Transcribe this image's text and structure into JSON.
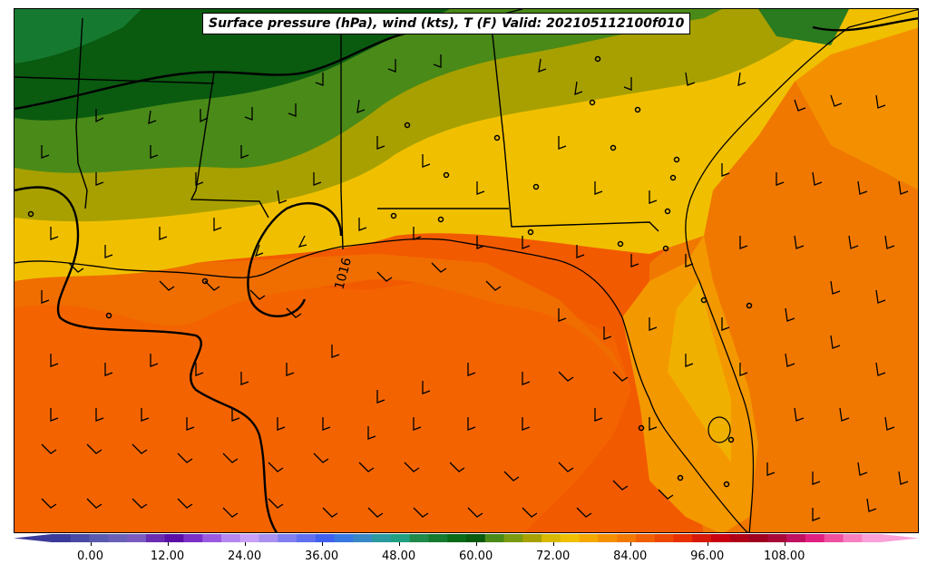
{
  "title": "Surface pressure (hPa), wind (kts), T (F) Valid: 202105112100f010",
  "isobar_label": "1016",
  "colorbar": {
    "ticks": [
      "0.00",
      "12.00",
      "24.00",
      "36.00",
      "48.00",
      "60.00",
      "72.00",
      "84.00",
      "96.00",
      "108.00"
    ],
    "tick_values": [
      0,
      12,
      24,
      36,
      48,
      60,
      72,
      84,
      96,
      108
    ],
    "range": [
      -6,
      123
    ],
    "extend": "both",
    "colors": [
      "#3a3a9a",
      "#4a4aa6",
      "#5a5ab0",
      "#6a60b8",
      "#7a5cc0",
      "#6a2cb0",
      "#5a10a8",
      "#7a30c8",
      "#9a5ae0",
      "#b488f0",
      "#c8a0f8",
      "#aa90f0",
      "#8080f0",
      "#6070f0",
      "#4060f0",
      "#3878e0",
      "#3888c8",
      "#2a9aa0",
      "#20a080",
      "#1f8a4a",
      "#157a30",
      "#0a6a18",
      "#0a5a10",
      "#4a8a18",
      "#7a9a10",
      "#a8a000",
      "#d8b800",
      "#f0c000",
      "#f4a800",
      "#f49000",
      "#f47800",
      "#f06000",
      "#ec4800",
      "#e83000",
      "#d81808",
      "#c80010",
      "#b00018",
      "#a00020",
      "#a80838",
      "#c01060",
      "#e02080",
      "#f050a0",
      "#f880c0",
      "#fca0d8"
    ]
  },
  "colors": {
    "frame": "#000000",
    "background": "#ffffff",
    "boundaries": "#000000",
    "isobar": "#000000"
  }
}
